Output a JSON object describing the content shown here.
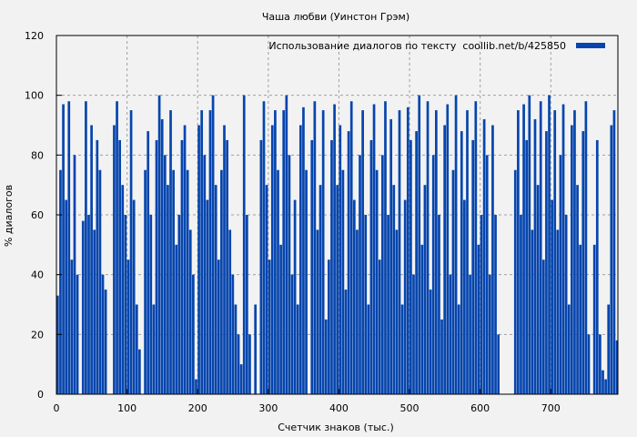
{
  "chart_data": {
    "type": "bar",
    "title": "Чаша любви (Уинстон Грэм)",
    "xlabel": "Счетчик знаков (тыс.)",
    "ylabel": "% диалогов",
    "xlim": [
      0,
      795
    ],
    "ylim": [
      0,
      120
    ],
    "xticks": [
      0,
      100,
      200,
      300,
      400,
      500,
      600,
      700
    ],
    "yticks": [
      0,
      20,
      40,
      60,
      80,
      100,
      120
    ],
    "grid": true,
    "legend_position": "top-right",
    "bin_width": 4,
    "series": [
      {
        "name": "Использование диалогов по тексту  coollib.net/b/425850",
        "color": "#0645ad",
        "x_start": 0,
        "values": [
          33,
          75,
          97,
          65,
          98,
          45,
          80,
          40,
          0,
          58,
          98,
          60,
          90,
          55,
          85,
          75,
          40,
          35,
          0,
          0,
          90,
          98,
          85,
          70,
          60,
          45,
          95,
          65,
          30,
          15,
          0,
          75,
          88,
          60,
          30,
          85,
          100,
          92,
          80,
          70,
          95,
          75,
          50,
          60,
          85,
          90,
          75,
          55,
          40,
          5,
          90,
          95,
          80,
          65,
          95,
          100,
          70,
          45,
          75,
          90,
          85,
          55,
          40,
          30,
          20,
          10,
          100,
          60,
          20,
          0,
          30,
          0,
          85,
          98,
          70,
          45,
          90,
          95,
          75,
          50,
          95,
          100,
          80,
          40,
          65,
          30,
          90,
          96,
          75,
          0,
          85,
          98,
          55,
          70,
          95,
          25,
          45,
          85,
          97,
          70,
          90,
          75,
          35,
          88,
          98,
          65,
          55,
          80,
          95,
          60,
          30,
          85,
          97,
          75,
          45,
          80,
          98,
          60,
          92,
          70,
          55,
          95,
          30,
          65,
          96,
          85,
          40,
          88,
          100,
          50,
          70,
          98,
          35,
          80,
          95,
          60,
          25,
          90,
          97,
          40,
          75,
          100,
          30,
          88,
          65,
          95,
          40,
          85,
          98,
          50,
          60,
          92,
          80,
          40,
          90,
          60,
          20,
          0,
          0,
          0,
          0,
          0,
          75,
          95,
          60,
          97,
          85,
          100,
          55,
          92,
          70,
          98,
          45,
          88,
          100,
          65,
          95,
          55,
          80,
          97,
          60,
          30,
          90,
          95,
          70,
          50,
          88,
          98,
          20,
          0,
          50,
          85,
          20,
          8,
          5,
          30,
          90,
          95,
          18
        ]
      }
    ]
  }
}
